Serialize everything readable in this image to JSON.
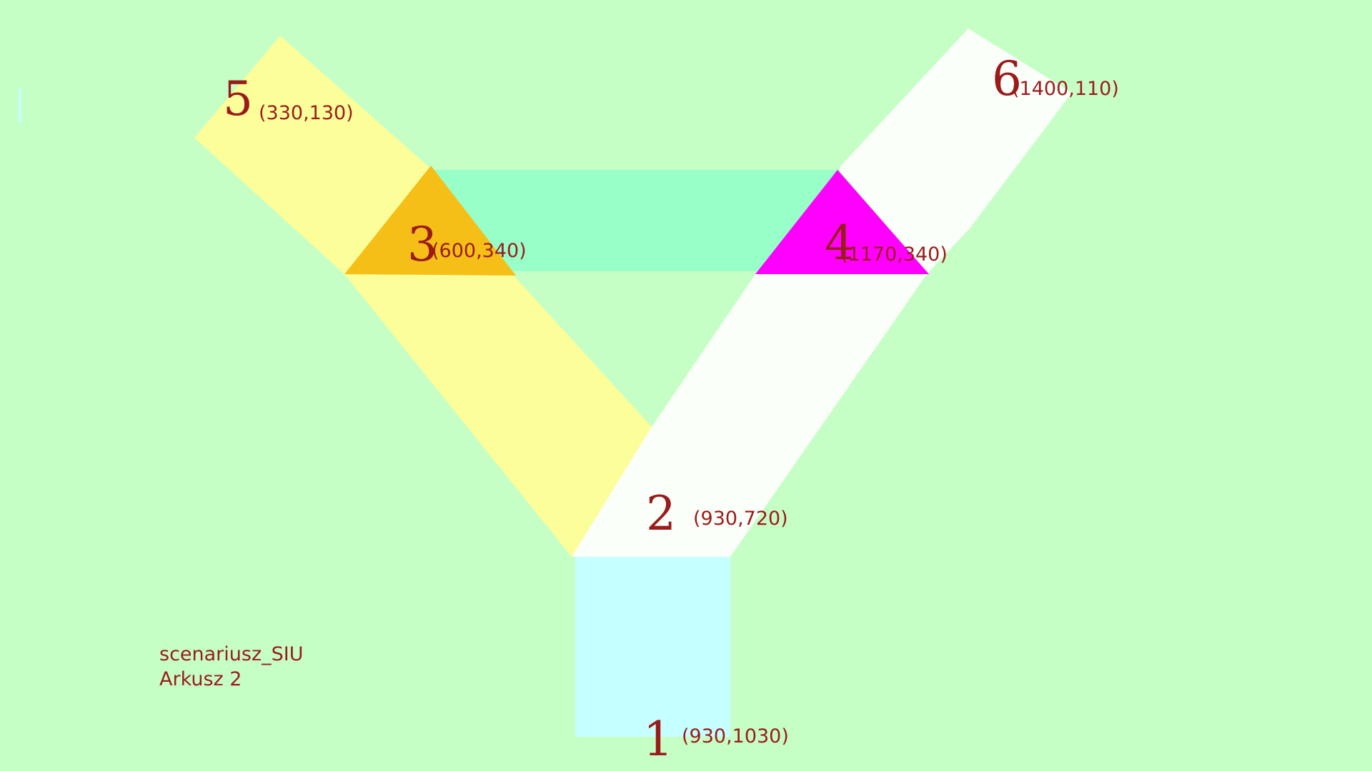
{
  "colors": {
    "background": "#c6ffc6",
    "road_left": "#fcff99",
    "road_right": "#fbfff9",
    "road_top": "#98ffc9",
    "road_bottom": "#c6ffff",
    "junction_3": "#f5bf17",
    "junction_4": "#ff00ff",
    "label": "#9b1b1b"
  },
  "nodes": [
    {
      "id": "1",
      "number": "1",
      "coord": "(930,1030)"
    },
    {
      "id": "2",
      "number": "2",
      "coord": "(930,720)"
    },
    {
      "id": "3",
      "number": "3",
      "coord": "(600,340)"
    },
    {
      "id": "4",
      "number": "4",
      "coord": "(1170,340)"
    },
    {
      "id": "5",
      "number": "5",
      "coord": "(330,130)"
    },
    {
      "id": "6",
      "number": "6",
      "coord": "(1400,110)"
    }
  ],
  "sheet": {
    "name": "scenariusz_SIU",
    "page": "Arkusz 2"
  }
}
